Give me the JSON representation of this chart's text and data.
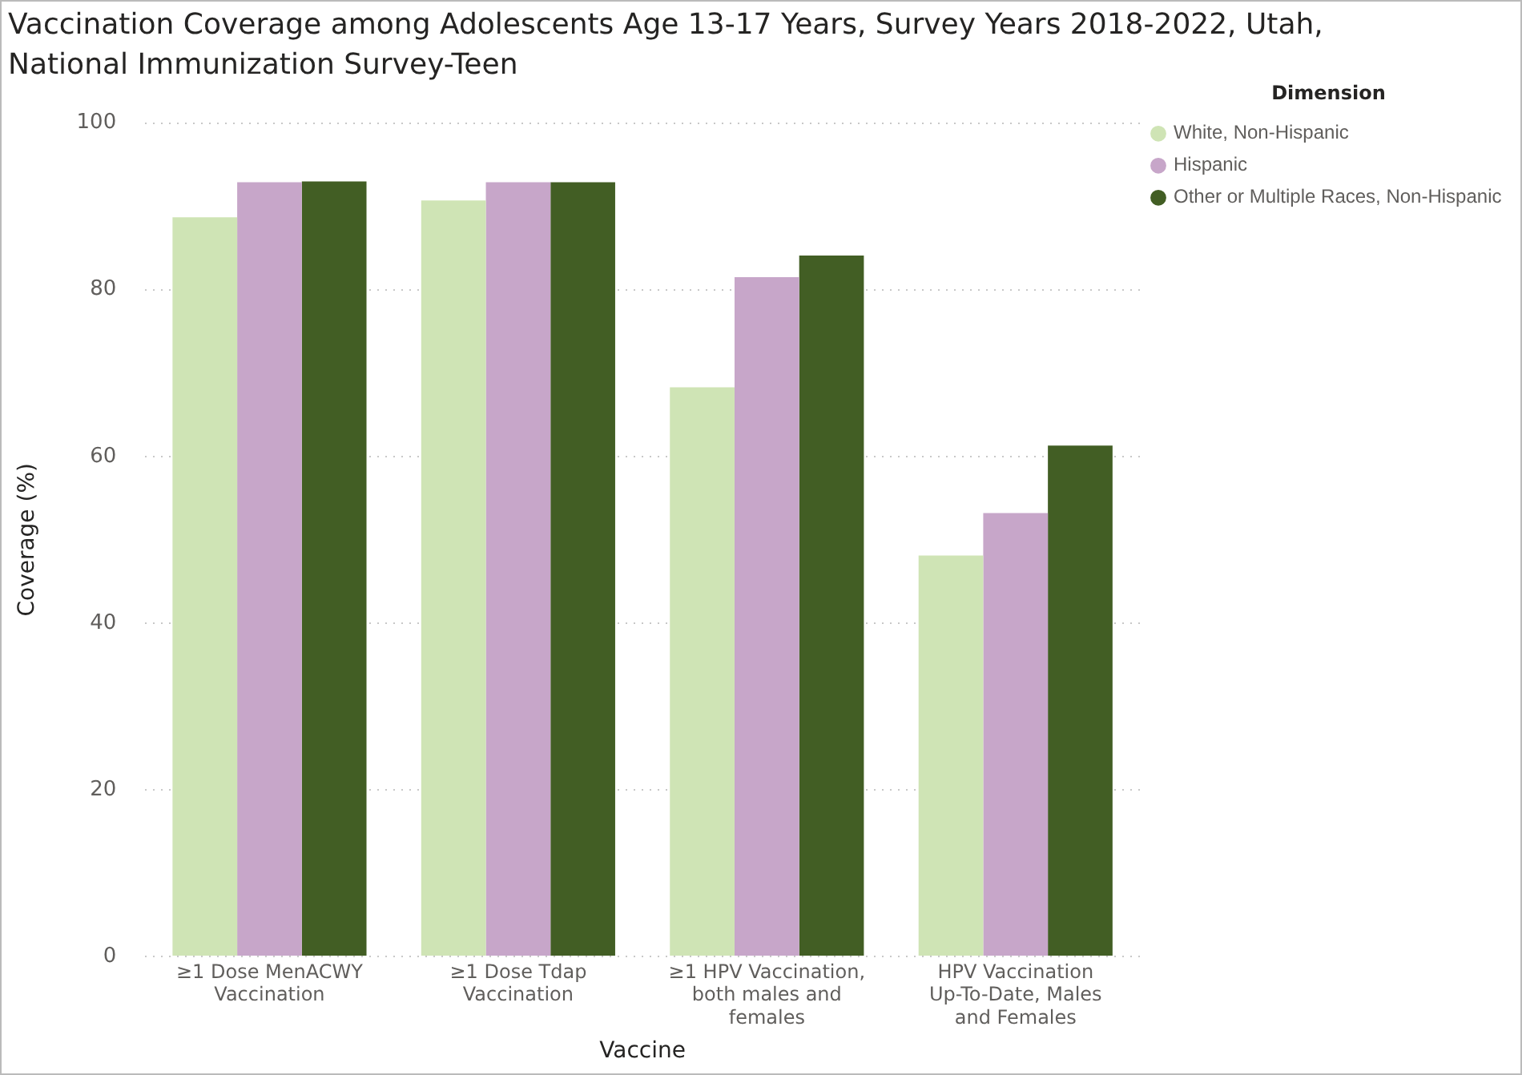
{
  "chart_data": {
    "type": "bar",
    "title": "Vaccination Coverage among Adolescents Age 13-17 Years, Survey Years 2018-2022, Utah, National Immunization Survey-Teen",
    "xlabel": "Vaccine",
    "ylabel": "Coverage (%)",
    "legend_title": "Dimension",
    "categories": [
      "≥1 Dose MenACWY Vaccination",
      "≥1 Dose Tdap Vaccination",
      "≥1 HPV Vaccination, both males and females",
      "HPV Vaccination Up-To-Date, Males and Females"
    ],
    "series": [
      {
        "name": "White, Non-Hispanic",
        "color": "#cfe4b5",
        "values": [
          88.7,
          90.7,
          68.3,
          48.1
        ]
      },
      {
        "name": "Hispanic",
        "color": "#c7a6c9",
        "values": [
          92.9,
          92.9,
          81.5,
          53.2
        ]
      },
      {
        "name": "Other or Multiple Races, Non-Hispanic",
        "color": "#425e24",
        "values": [
          93.0,
          92.9,
          84.1,
          61.3
        ]
      }
    ],
    "ylim": [
      0,
      100
    ],
    "yticks": [
      0,
      20,
      40,
      60,
      80,
      100
    ],
    "grid": "y",
    "legend": "top right"
  }
}
